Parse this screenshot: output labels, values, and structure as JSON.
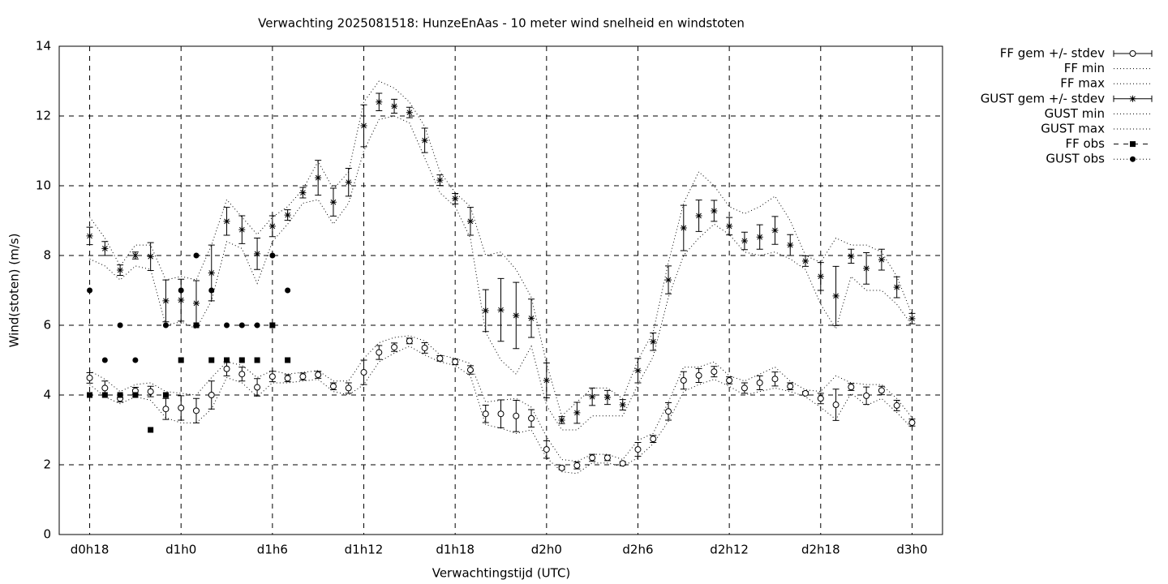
{
  "chart_data": {
    "type": "errorbar",
    "title": "Verwachting 2025081518: HunzeEnAas - 10 meter wind snelheid en windstoten",
    "x_label": "Verwachtingstijd (UTC)",
    "y_label": "Wind(stoten) (m/s)",
    "xlim": [
      16,
      74
    ],
    "xticks": [
      {
        "value": 18,
        "label": "d0h18"
      },
      {
        "value": 24,
        "label": "d1h0"
      },
      {
        "value": 30,
        "label": "d1h6"
      },
      {
        "value": 36,
        "label": "d1h12"
      },
      {
        "value": 42,
        "label": "d1h18"
      },
      {
        "value": 48,
        "label": "d2h0"
      },
      {
        "value": 54,
        "label": "d2h6"
      },
      {
        "value": 60,
        "label": "d2h12"
      },
      {
        "value": 66,
        "label": "d2h18"
      },
      {
        "value": 72,
        "label": "d3h0"
      }
    ],
    "ylim": [
      0,
      14
    ],
    "yticks": [
      0,
      2,
      4,
      6,
      8,
      10,
      12,
      14
    ],
    "grid": true,
    "legend": "outside-right",
    "x": [
      18,
      19,
      20,
      21,
      22,
      23,
      24,
      25,
      26,
      27,
      28,
      29,
      30,
      31,
      32,
      33,
      34,
      35,
      36,
      37,
      38,
      39,
      40,
      41,
      42,
      43,
      44,
      45,
      46,
      47,
      48,
      49,
      50,
      51,
      52,
      53,
      54,
      55,
      56,
      57,
      58,
      59,
      60,
      61,
      62,
      63,
      64,
      65,
      66,
      67,
      68,
      69,
      70,
      71,
      72
    ],
    "series": [
      {
        "name": "FF gem +/- stdev",
        "color": "#000000",
        "style": "errorbar",
        "marker": "circle",
        "values": [
          4.49,
          4.2,
          3.9,
          4.12,
          4.1,
          3.6,
          3.63,
          3.55,
          4.0,
          4.75,
          4.6,
          4.22,
          4.53,
          4.48,
          4.53,
          4.58,
          4.25,
          4.2,
          4.65,
          5.22,
          5.37,
          5.55,
          5.35,
          5.05,
          4.95,
          4.72,
          3.46,
          3.46,
          3.4,
          3.33,
          2.44,
          1.91,
          1.98,
          2.2,
          2.2,
          2.04,
          2.44,
          2.74,
          3.53,
          4.42,
          4.56,
          4.67,
          4.42,
          4.2,
          4.35,
          4.46,
          4.25,
          4.05,
          3.9,
          3.72,
          4.23,
          3.98,
          4.13,
          3.7,
          3.21
        ],
        "errors": [
          0.15,
          0.2,
          0.1,
          0.1,
          0.15,
          0.3,
          0.35,
          0.35,
          0.4,
          0.2,
          0.2,
          0.25,
          0.15,
          0.1,
          0.1,
          0.1,
          0.1,
          0.15,
          0.35,
          0.2,
          0.12,
          0.08,
          0.15,
          0.08,
          0.08,
          0.12,
          0.25,
          0.4,
          0.45,
          0.25,
          0.25,
          0.05,
          0.1,
          0.1,
          0.08,
          0.05,
          0.2,
          0.1,
          0.25,
          0.25,
          0.2,
          0.15,
          0.1,
          0.15,
          0.2,
          0.2,
          0.1,
          0.05,
          0.15,
          0.45,
          0.1,
          0.25,
          0.12,
          0.15,
          0.1
        ]
      },
      {
        "name": "FF min",
        "color": "#000000",
        "style": "dotted",
        "values": [
          4.3,
          3.95,
          3.75,
          3.95,
          3.85,
          3.35,
          3.2,
          3.2,
          3.6,
          4.5,
          4.35,
          3.95,
          4.35,
          4.35,
          4.4,
          4.45,
          4.1,
          4.0,
          4.3,
          4.95,
          5.2,
          5.4,
          5.15,
          4.95,
          4.85,
          4.55,
          3.15,
          3.05,
          2.9,
          3.0,
          2.2,
          1.8,
          1.75,
          2.05,
          2.05,
          1.95,
          2.2,
          2.6,
          3.25,
          4.1,
          4.3,
          4.45,
          4.25,
          4.0,
          4.1,
          4.2,
          4.1,
          3.95,
          3.65,
          3.3,
          4.05,
          3.7,
          3.9,
          3.5,
          3.05
        ]
      },
      {
        "name": "FF max",
        "color": "#000000",
        "style": "dotted",
        "values": [
          4.7,
          4.45,
          4.1,
          4.3,
          4.35,
          4.1,
          4.05,
          4.0,
          4.5,
          4.95,
          4.85,
          4.5,
          4.7,
          4.6,
          4.65,
          4.7,
          4.4,
          4.4,
          5.05,
          5.5,
          5.65,
          5.7,
          5.55,
          5.15,
          5.05,
          4.9,
          3.8,
          3.85,
          3.9,
          3.65,
          2.8,
          2.15,
          2.1,
          2.3,
          2.3,
          2.15,
          2.7,
          2.9,
          3.8,
          4.8,
          4.8,
          4.95,
          4.55,
          4.4,
          4.6,
          4.8,
          4.4,
          4.15,
          4.1,
          4.55,
          4.35,
          4.3,
          4.3,
          3.9,
          3.35
        ]
      },
      {
        "name": "GUST gem +/- stdev",
        "color": "#000000",
        "style": "errorbar",
        "marker": "star",
        "values": [
          8.56,
          8.2,
          7.58,
          8.0,
          7.97,
          6.7,
          6.72,
          6.63,
          7.5,
          8.98,
          8.74,
          8.05,
          8.84,
          9.16,
          9.8,
          10.23,
          9.53,
          10.1,
          11.72,
          12.4,
          12.28,
          12.1,
          11.3,
          10.16,
          9.63,
          8.98,
          6.42,
          6.44,
          6.28,
          6.2,
          4.42,
          3.28,
          3.49,
          3.95,
          3.93,
          3.72,
          4.7,
          5.53,
          7.3,
          8.79,
          9.14,
          9.28,
          8.84,
          8.42,
          8.53,
          8.72,
          8.3,
          7.84,
          7.4,
          6.84,
          7.98,
          7.63,
          7.88,
          7.09,
          6.19
        ],
        "errors": [
          0.25,
          0.2,
          0.15,
          0.1,
          0.4,
          0.6,
          0.6,
          0.65,
          0.8,
          0.4,
          0.4,
          0.45,
          0.3,
          0.15,
          0.15,
          0.5,
          0.4,
          0.4,
          0.6,
          0.25,
          0.2,
          0.15,
          0.35,
          0.15,
          0.15,
          0.4,
          0.6,
          0.9,
          0.95,
          0.55,
          0.5,
          0.1,
          0.3,
          0.25,
          0.2,
          0.15,
          0.35,
          0.25,
          0.4,
          0.65,
          0.45,
          0.3,
          0.25,
          0.25,
          0.35,
          0.4,
          0.3,
          0.15,
          0.4,
          0.85,
          0.2,
          0.45,
          0.3,
          0.3,
          0.15
        ]
      },
      {
        "name": "GUST min",
        "color": "#000000",
        "style": "dotted",
        "values": [
          7.9,
          7.7,
          7.3,
          7.7,
          7.6,
          6.0,
          6.1,
          5.9,
          6.7,
          8.4,
          8.2,
          7.2,
          8.4,
          8.9,
          9.5,
          9.6,
          8.9,
          9.5,
          11.0,
          11.9,
          12.0,
          11.8,
          10.8,
          9.8,
          9.4,
          8.5,
          5.8,
          5.0,
          4.6,
          5.4,
          3.7,
          3.0,
          3.0,
          3.4,
          3.4,
          3.4,
          4.3,
          5.1,
          6.8,
          8.0,
          8.5,
          8.9,
          8.6,
          8.1,
          8.0,
          8.1,
          7.9,
          7.6,
          6.6,
          5.9,
          7.4,
          7.0,
          7.0,
          6.6,
          6.0
        ]
      },
      {
        "name": "GUST max",
        "color": "#000000",
        "style": "dotted",
        "values": [
          9.1,
          8.5,
          7.7,
          8.3,
          8.3,
          7.3,
          7.4,
          7.3,
          8.3,
          9.6,
          9.1,
          8.6,
          9.1,
          9.4,
          9.9,
          10.7,
          9.9,
          10.4,
          12.4,
          13.0,
          12.8,
          12.4,
          11.7,
          10.4,
          9.8,
          9.4,
          8.0,
          8.1,
          7.6,
          6.8,
          4.9,
          3.4,
          3.8,
          4.2,
          4.2,
          3.9,
          5.0,
          5.8,
          7.8,
          9.5,
          10.4,
          10.0,
          9.4,
          9.2,
          9.4,
          9.7,
          9.0,
          8.0,
          7.8,
          8.5,
          8.3,
          8.3,
          8.1,
          7.4,
          6.3
        ]
      },
      {
        "name": "FF obs",
        "color": "#000000",
        "style": "points",
        "marker": "square",
        "values": [
          4,
          4,
          4,
          4,
          3,
          4,
          5,
          6,
          5,
          5,
          5,
          5,
          6,
          5,
          null,
          null,
          null,
          null,
          null,
          null,
          null,
          null,
          null,
          null,
          null,
          null,
          null,
          null,
          null,
          null,
          null,
          null,
          null,
          null,
          null,
          null,
          null,
          null,
          null,
          null,
          null,
          null,
          null,
          null,
          null,
          null,
          null,
          null,
          null,
          null,
          null,
          null,
          null,
          null,
          null
        ]
      },
      {
        "name": "GUST obs",
        "color": "#000000",
        "style": "points",
        "marker": "dot",
        "values": [
          7,
          5,
          6,
          5,
          null,
          6,
          7,
          8,
          7,
          6,
          6,
          6,
          8,
          7,
          null,
          null,
          null,
          null,
          null,
          null,
          null,
          null,
          null,
          null,
          null,
          null,
          null,
          null,
          null,
          null,
          null,
          null,
          null,
          null,
          null,
          null,
          null,
          null,
          null,
          null,
          null,
          null,
          null,
          null,
          null,
          null,
          null,
          null,
          null,
          null,
          null,
          null,
          null,
          null,
          null
        ]
      }
    ]
  }
}
